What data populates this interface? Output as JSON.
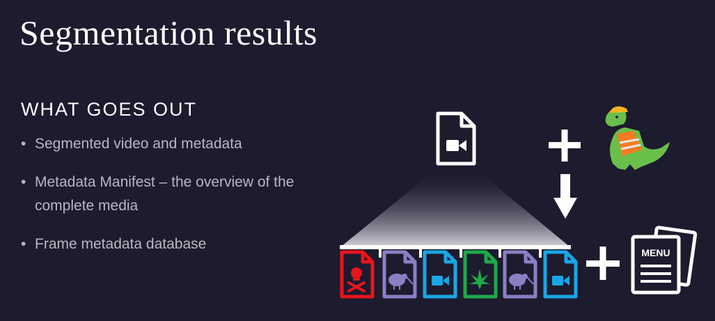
{
  "slide": {
    "title": "Segmentation results",
    "subtitle": "WHAT GOES OUT",
    "bullets": [
      "Segmented video and metadata",
      "Metadata Manifest – the overview of the complete media",
      "Frame metadata database"
    ]
  },
  "diagram": {
    "source_icon": "video-file-icon",
    "mascot_icon": "dinosaur-worker-icon",
    "menu_label": "MENU",
    "segments": [
      {
        "icon": "skull-file-icon",
        "color": "#e8141c"
      },
      {
        "icon": "kiwi-file-icon",
        "color": "#8c7fc4"
      },
      {
        "icon": "video-file-icon",
        "color": "#1aa6e6"
      },
      {
        "icon": "leaf-file-icon",
        "color": "#1fa84a"
      },
      {
        "icon": "kiwi-file-icon",
        "color": "#8c7fc4"
      },
      {
        "icon": "video-file-icon",
        "color": "#1aa6e6"
      }
    ]
  }
}
